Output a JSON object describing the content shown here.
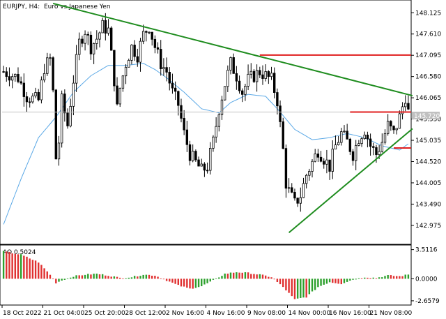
{
  "header": {
    "symbol_label": "EURJPY, H4:",
    "description": "Euro vs Japanese Yen",
    "indicator_label": "AO 0.5024"
  },
  "price_tag": "145.720",
  "colors": {
    "bull": "#000000",
    "bear": "#000000",
    "ma": "#5aa8e6",
    "trendline": "#1e8c1e",
    "level": "#e01e1e",
    "ao_up": "#2ca02c",
    "ao_down": "#e03030",
    "price_line": "#c0c0c0"
  },
  "chart_data": {
    "type": "candlestick",
    "symbol": "EURJPY",
    "timeframe": "H4",
    "y_ticks": [
      "148.125",
      "147.610",
      "147.095",
      "146.580",
      "146.065",
      "145.550",
      "145.035",
      "144.520",
      "144.005",
      "143.490",
      "142.975"
    ],
    "ylim": [
      142.55,
      148.4
    ],
    "x_ticks": [
      "18 Oct 2022",
      "21 Oct 04:00",
      "25 Oct 20:00",
      "28 Oct 12:00",
      "2 Nov 16:00",
      "4 Nov 16:00",
      "9 Nov 08:00",
      "14 Nov 00:00",
      "16 Nov 16:00",
      "21 Nov 08:00"
    ],
    "bars": 140,
    "close_path": [
      [
        0,
        146.7
      ],
      [
        5,
        146.55
      ],
      [
        8,
        146.1
      ],
      [
        12,
        146.0
      ],
      [
        14,
        146.8
      ],
      [
        16,
        147.0
      ],
      [
        17,
        146.2
      ],
      [
        18,
        144.6
      ],
      [
        19,
        145.0
      ],
      [
        20,
        146.0
      ],
      [
        22,
        145.4
      ],
      [
        24,
        146.5
      ],
      [
        26,
        147.4
      ],
      [
        28,
        147.7
      ],
      [
        30,
        147.3
      ],
      [
        32,
        147.5
      ],
      [
        34,
        147.8
      ],
      [
        36,
        147.7
      ],
      [
        38,
        146.5
      ],
      [
        39,
        145.8
      ],
      [
        40,
        146.3
      ],
      [
        42,
        146.9
      ],
      [
        44,
        147.3
      ],
      [
        46,
        147.1
      ],
      [
        48,
        147.6
      ],
      [
        50,
        147.8
      ],
      [
        52,
        147.3
      ],
      [
        54,
        146.9
      ],
      [
        56,
        146.7
      ],
      [
        58,
        146.2
      ],
      [
        60,
        145.9
      ],
      [
        62,
        145.2
      ],
      [
        64,
        144.7
      ],
      [
        66,
        144.5
      ],
      [
        68,
        144.3
      ],
      [
        70,
        144.4
      ],
      [
        72,
        145.0
      ],
      [
        74,
        145.8
      ],
      [
        76,
        146.4
      ],
      [
        78,
        146.9
      ],
      [
        80,
        146.6
      ],
      [
        82,
        146.2
      ],
      [
        84,
        146.5
      ],
      [
        86,
        146.6
      ],
      [
        88,
        146.7
      ],
      [
        90,
        146.6
      ],
      [
        92,
        146.5
      ],
      [
        94,
        146.0
      ],
      [
        96,
        144.8
      ],
      [
        97,
        144.0
      ],
      [
        98,
        143.8
      ],
      [
        100,
        143.5
      ],
      [
        102,
        143.7
      ],
      [
        104,
        144.2
      ],
      [
        106,
        144.5
      ],
      [
        108,
        144.8
      ],
      [
        110,
        144.6
      ],
      [
        112,
        144.4
      ],
      [
        114,
        144.9
      ],
      [
        116,
        145.2
      ],
      [
        118,
        145.0
      ],
      [
        120,
        144.7
      ],
      [
        122,
        145.1
      ],
      [
        124,
        145.3
      ],
      [
        126,
        144.9
      ],
      [
        128,
        144.7
      ],
      [
        130,
        145.0
      ],
      [
        132,
        145.4
      ],
      [
        134,
        145.2
      ],
      [
        136,
        145.6
      ],
      [
        138,
        146.1
      ],
      [
        139,
        145.72
      ]
    ],
    "ma_path": [
      [
        0,
        143.0
      ],
      [
        6,
        144.1
      ],
      [
        12,
        145.1
      ],
      [
        18,
        145.6
      ],
      [
        24,
        146.2
      ],
      [
        30,
        146.6
      ],
      [
        36,
        146.85
      ],
      [
        42,
        146.85
      ],
      [
        48,
        146.9
      ],
      [
        52,
        146.75
      ],
      [
        56,
        146.55
      ],
      [
        62,
        146.2
      ],
      [
        68,
        145.8
      ],
      [
        74,
        145.7
      ],
      [
        78,
        145.95
      ],
      [
        84,
        146.15
      ],
      [
        90,
        146.1
      ],
      [
        94,
        145.8
      ],
      [
        100,
        145.3
      ],
      [
        106,
        145.05
      ],
      [
        112,
        145.1
      ],
      [
        118,
        145.2
      ],
      [
        124,
        145.1
      ],
      [
        130,
        144.9
      ],
      [
        136,
        144.8
      ],
      [
        139,
        144.95
      ]
    ],
    "trendlines": [
      {
        "from": [
          17,
          148.35
        ],
        "to": [
          139,
          146.1
        ]
      },
      {
        "from": [
          98,
          142.8
        ],
        "to": [
          139,
          145.3
        ]
      }
    ],
    "levels": [
      {
        "price": 147.1,
        "from": 88,
        "to": 139
      },
      {
        "price": 145.72,
        "from": 119,
        "to": 139
      },
      {
        "price": 144.85,
        "from": 134,
        "to": 139
      }
    ],
    "ao": {
      "label": "AO",
      "value": "0.5024",
      "ticks": [
        "3.5116",
        "0.0000",
        "-2.6579"
      ],
      "ylim": [
        -3.0,
        3.9
      ],
      "path": [
        [
          0,
          3.3
        ],
        [
          6,
          2.9
        ],
        [
          12,
          2.0
        ],
        [
          16,
          0.5
        ],
        [
          18,
          -0.5
        ],
        [
          20,
          -0.2
        ],
        [
          24,
          0.3
        ],
        [
          28,
          0.5
        ],
        [
          32,
          0.6
        ],
        [
          36,
          0.4
        ],
        [
          40,
          0.1
        ],
        [
          44,
          0.2
        ],
        [
          48,
          0.5
        ],
        [
          52,
          0.4
        ],
        [
          56,
          -0.2
        ],
        [
          60,
          -0.8
        ],
        [
          64,
          -1.2
        ],
        [
          68,
          -0.9
        ],
        [
          72,
          -0.2
        ],
        [
          76,
          0.6
        ],
        [
          80,
          0.8
        ],
        [
          84,
          0.7
        ],
        [
          88,
          0.5
        ],
        [
          92,
          0.2
        ],
        [
          96,
          -1.0
        ],
        [
          100,
          -2.5
        ],
        [
          104,
          -2.2
        ],
        [
          108,
          -1.0
        ],
        [
          112,
          -0.4
        ],
        [
          116,
          -0.6
        ],
        [
          120,
          -0.1
        ],
        [
          124,
          0.2
        ],
        [
          128,
          0.1
        ],
        [
          132,
          0.4
        ],
        [
          136,
          0.3
        ],
        [
          139,
          0.5
        ]
      ]
    }
  }
}
